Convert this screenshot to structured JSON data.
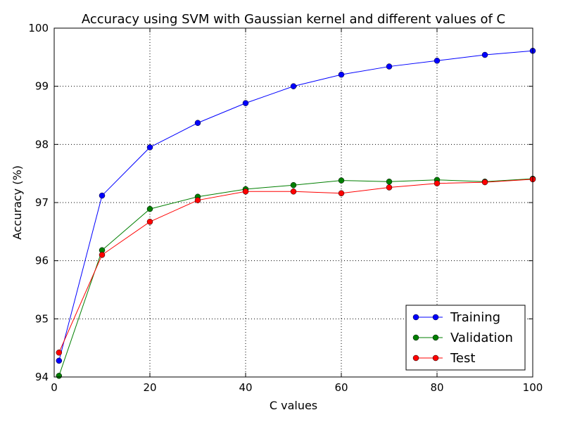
{
  "chart_data": {
    "type": "line",
    "title": "Accuracy using SVM with Gaussian kernel and different values of C",
    "xlabel": "C values",
    "ylabel": "Accuracy (%)",
    "xlim": [
      0,
      100
    ],
    "ylim": [
      94,
      100
    ],
    "xticks": [
      0,
      20,
      40,
      60,
      80,
      100
    ],
    "yticks": [
      94,
      95,
      96,
      97,
      98,
      99,
      100
    ],
    "grid": true,
    "legend_position": "bottom-right",
    "x": [
      1,
      10,
      20,
      30,
      40,
      50,
      60,
      70,
      80,
      90,
      100
    ],
    "series": [
      {
        "name": "Training",
        "color": "#0000ff",
        "marker": "circle",
        "values": [
          94.28,
          97.12,
          97.95,
          98.37,
          98.71,
          99.0,
          99.2,
          99.34,
          99.44,
          99.54,
          99.61
        ]
      },
      {
        "name": "Validation",
        "color": "#007f00",
        "marker": "circle",
        "values": [
          94.02,
          96.18,
          96.89,
          97.1,
          97.23,
          97.3,
          97.38,
          97.36,
          97.39,
          97.36,
          97.41
        ]
      },
      {
        "name": "Test",
        "color": "#ff0000",
        "marker": "circle",
        "values": [
          94.42,
          96.1,
          96.67,
          97.04,
          97.19,
          97.19,
          97.16,
          97.26,
          97.33,
          97.35,
          97.4
        ]
      }
    ]
  }
}
